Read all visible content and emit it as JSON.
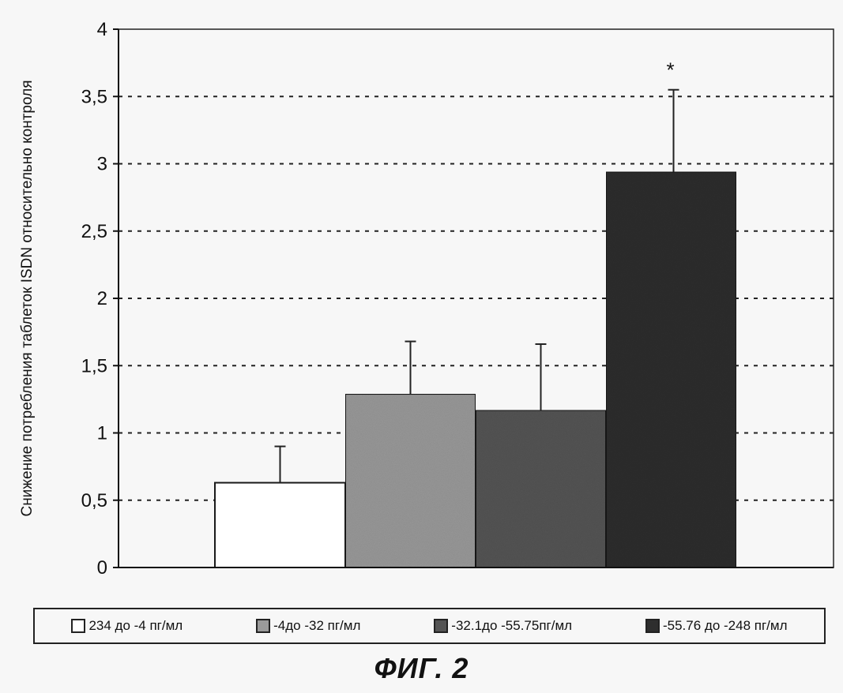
{
  "chart_data": {
    "type": "bar",
    "categories": [
      "234 до -4 пг/мл",
      "-4до -32 пг/мл",
      "-32.1до -55.75пг/мл",
      "-55.76 до -248 пг/мл"
    ],
    "values": [
      0.63,
      1.29,
      1.17,
      2.94
    ],
    "error_bars": [
      0.27,
      0.39,
      0.49,
      0.61
    ],
    "annotations": [
      "",
      "",
      "",
      "*"
    ],
    "title": "",
    "xlabel": "",
    "ylabel": "Снижение потребления таблеток ISDN относительно контроля",
    "ylim": [
      0,
      4
    ],
    "yticks": [
      "0",
      "0,5",
      "1",
      "1,5",
      "2",
      "2,5",
      "3",
      "3,5",
      "4"
    ],
    "grid": true,
    "legend_position": "bottom",
    "colors": [
      "#ffffff",
      "#9a9a9a",
      "#555555",
      "#2e2e2e"
    ]
  },
  "caption": "ФИГ. 2"
}
